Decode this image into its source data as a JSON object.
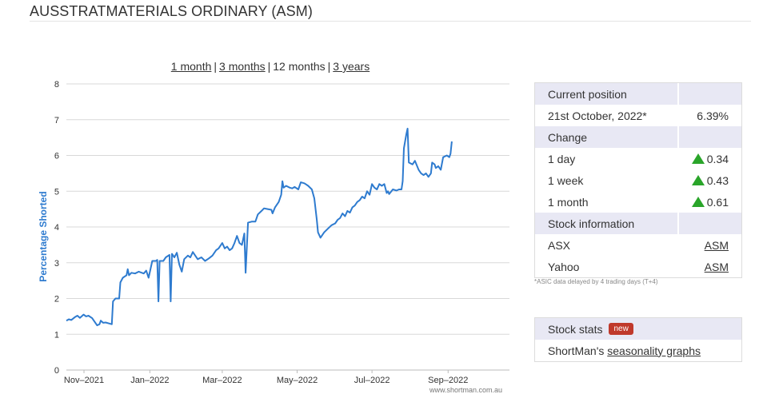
{
  "page": {
    "title": "AUSSTRATMATERIALS ORDINARY (ASM)"
  },
  "range_selector": {
    "options": [
      "1 month",
      "3 months",
      "12 months",
      "3 years"
    ],
    "selected": "12 months"
  },
  "chart_data": {
    "type": "line",
    "title": "",
    "xlabel": "",
    "ylabel": "Percentage Shorted",
    "ylim": [
      0,
      8
    ],
    "yticks": [
      0,
      1,
      2,
      3,
      4,
      5,
      6,
      7,
      8
    ],
    "xticks": [
      "Nov–2021",
      "Jan–2022",
      "Mar–2022",
      "May–2022",
      "Jul–2022",
      "Sep–2022"
    ],
    "xlim": [
      "2021-10-25",
      "2022-10-21"
    ],
    "grid": true,
    "credit": "www.shortman.com.au",
    "series": [
      {
        "color": "#2e7bcf",
        "points": [
          [
            "2021-10-25",
            1.38
          ],
          [
            "2021-10-27",
            1.42
          ],
          [
            "2021-10-29",
            1.4
          ],
          [
            "2021-11-01",
            1.48
          ],
          [
            "2021-11-03",
            1.52
          ],
          [
            "2021-11-05",
            1.46
          ],
          [
            "2021-11-08",
            1.55
          ],
          [
            "2021-11-10",
            1.5
          ],
          [
            "2021-11-12",
            1.52
          ],
          [
            "2021-11-15",
            1.45
          ],
          [
            "2021-11-17",
            1.35
          ],
          [
            "2021-11-19",
            1.25
          ],
          [
            "2021-11-21",
            1.28
          ],
          [
            "2021-11-22",
            1.38
          ],
          [
            "2021-11-24",
            1.32
          ],
          [
            "2021-11-26",
            1.33
          ],
          [
            "2021-11-29",
            1.3
          ],
          [
            "2021-12-01",
            1.28
          ],
          [
            "2021-12-02",
            1.92
          ],
          [
            "2021-12-04",
            2.0
          ],
          [
            "2021-12-07",
            2.0
          ],
          [
            "2021-12-08",
            2.45
          ],
          [
            "2021-12-10",
            2.58
          ],
          [
            "2021-12-13",
            2.65
          ],
          [
            "2021-12-14",
            2.82
          ],
          [
            "2021-12-15",
            2.65
          ],
          [
            "2021-12-17",
            2.72
          ],
          [
            "2021-12-20",
            2.7
          ],
          [
            "2021-12-23",
            2.75
          ],
          [
            "2021-12-27",
            2.7
          ],
          [
            "2021-12-29",
            2.78
          ],
          [
            "2021-12-31",
            2.58
          ],
          [
            "2022-01-03",
            3.05
          ],
          [
            "2022-01-06",
            3.05
          ],
          [
            "2022-01-07",
            3.08
          ],
          [
            "2022-01-08",
            1.92
          ],
          [
            "2022-01-09",
            3.05
          ],
          [
            "2022-01-12",
            3.05
          ],
          [
            "2022-01-14",
            3.15
          ],
          [
            "2022-01-17",
            3.22
          ],
          [
            "2022-01-18",
            1.92
          ],
          [
            "2022-01-19",
            3.25
          ],
          [
            "2022-01-21",
            3.15
          ],
          [
            "2022-01-23",
            3.28
          ],
          [
            "2022-01-25",
            2.95
          ],
          [
            "2022-01-27",
            2.75
          ],
          [
            "2022-01-29",
            3.1
          ],
          [
            "2022-02-01",
            3.2
          ],
          [
            "2022-02-03",
            3.15
          ],
          [
            "2022-02-05",
            3.3
          ],
          [
            "2022-02-07",
            3.2
          ],
          [
            "2022-02-09",
            3.1
          ],
          [
            "2022-02-12",
            3.15
          ],
          [
            "2022-02-15",
            3.05
          ],
          [
            "2022-02-18",
            3.12
          ],
          [
            "2022-02-21",
            3.2
          ],
          [
            "2022-02-24",
            3.35
          ],
          [
            "2022-02-26",
            3.4
          ],
          [
            "2022-03-01",
            3.55
          ],
          [
            "2022-03-03",
            3.4
          ],
          [
            "2022-03-05",
            3.45
          ],
          [
            "2022-03-07",
            3.35
          ],
          [
            "2022-03-09",
            3.4
          ],
          [
            "2022-03-11",
            3.55
          ],
          [
            "2022-03-13",
            3.75
          ],
          [
            "2022-03-15",
            3.55
          ],
          [
            "2022-03-17",
            3.5
          ],
          [
            "2022-03-19",
            3.82
          ],
          [
            "2022-03-20",
            2.72
          ],
          [
            "2022-03-22",
            4.12
          ],
          [
            "2022-03-25",
            4.15
          ],
          [
            "2022-03-28",
            4.15
          ],
          [
            "2022-03-30",
            4.35
          ],
          [
            "2022-04-02",
            4.45
          ],
          [
            "2022-04-04",
            4.52
          ],
          [
            "2022-04-07",
            4.5
          ],
          [
            "2022-04-10",
            4.48
          ],
          [
            "2022-04-11",
            4.38
          ],
          [
            "2022-04-13",
            4.55
          ],
          [
            "2022-04-16",
            4.7
          ],
          [
            "2022-04-18",
            4.9
          ],
          [
            "2022-04-19",
            5.28
          ],
          [
            "2022-04-20",
            5.1
          ],
          [
            "2022-04-22",
            5.15
          ],
          [
            "2022-04-25",
            5.1
          ],
          [
            "2022-04-27",
            5.08
          ],
          [
            "2022-04-29",
            5.12
          ],
          [
            "2022-05-02",
            5.05
          ],
          [
            "2022-05-04",
            5.25
          ],
          [
            "2022-05-07",
            5.22
          ],
          [
            "2022-05-10",
            5.15
          ],
          [
            "2022-05-13",
            5.05
          ],
          [
            "2022-05-15",
            4.8
          ],
          [
            "2022-05-17",
            4.2
          ],
          [
            "2022-05-18",
            3.85
          ],
          [
            "2022-05-20",
            3.7
          ],
          [
            "2022-05-23",
            3.85
          ],
          [
            "2022-05-26",
            3.95
          ],
          [
            "2022-05-29",
            4.05
          ],
          [
            "2022-06-01",
            4.1
          ],
          [
            "2022-06-03",
            4.2
          ],
          [
            "2022-06-05",
            4.25
          ],
          [
            "2022-06-07",
            4.38
          ],
          [
            "2022-06-09",
            4.3
          ],
          [
            "2022-06-11",
            4.45
          ],
          [
            "2022-06-13",
            4.4
          ],
          [
            "2022-06-15",
            4.55
          ],
          [
            "2022-06-17",
            4.6
          ],
          [
            "2022-06-19",
            4.7
          ],
          [
            "2022-06-21",
            4.75
          ],
          [
            "2022-06-23",
            4.85
          ],
          [
            "2022-06-25",
            4.8
          ],
          [
            "2022-06-27",
            5.0
          ],
          [
            "2022-06-29",
            4.9
          ],
          [
            "2022-07-01",
            5.2
          ],
          [
            "2022-07-03",
            5.1
          ],
          [
            "2022-07-05",
            5.05
          ],
          [
            "2022-07-07",
            5.2
          ],
          [
            "2022-07-09",
            5.15
          ],
          [
            "2022-07-11",
            5.2
          ],
          [
            "2022-07-13",
            4.95
          ],
          [
            "2022-07-14",
            5.0
          ],
          [
            "2022-07-15",
            4.92
          ],
          [
            "2022-07-18",
            5.05
          ],
          [
            "2022-07-21",
            5.02
          ],
          [
            "2022-07-23",
            5.05
          ],
          [
            "2022-07-25",
            5.05
          ],
          [
            "2022-07-26",
            5.28
          ],
          [
            "2022-07-27",
            6.2
          ],
          [
            "2022-07-29",
            6.6
          ],
          [
            "2022-07-30",
            6.75
          ],
          [
            "2022-07-31",
            5.8
          ],
          [
            "2022-08-03",
            5.75
          ],
          [
            "2022-08-05",
            5.85
          ],
          [
            "2022-08-08",
            5.6
          ],
          [
            "2022-08-10",
            5.5
          ],
          [
            "2022-08-12",
            5.45
          ],
          [
            "2022-08-14",
            5.5
          ],
          [
            "2022-08-16",
            5.4
          ],
          [
            "2022-08-18",
            5.5
          ],
          [
            "2022-08-19",
            5.8
          ],
          [
            "2022-08-21",
            5.75
          ],
          [
            "2022-08-22",
            5.65
          ],
          [
            "2022-08-24",
            5.7
          ],
          [
            "2022-08-26",
            5.6
          ],
          [
            "2022-08-28",
            5.95
          ],
          [
            "2022-08-31",
            6.0
          ],
          [
            "2022-09-02",
            5.95
          ],
          [
            "2022-09-03",
            6.05
          ],
          [
            "2022-09-04",
            6.39
          ]
        ]
      }
    ]
  },
  "current_position": {
    "header": "Current position",
    "date": "21st October, 2022*",
    "value": "6.39%"
  },
  "change": {
    "header": "Change",
    "rows": [
      {
        "label": "1 day",
        "value": "0.34"
      },
      {
        "label": "1 week",
        "value": "0.43"
      },
      {
        "label": "1 month",
        "value": "0.61"
      }
    ]
  },
  "stock_information": {
    "header": "Stock information",
    "rows": [
      {
        "label": "ASX",
        "link": "ASM"
      },
      {
        "label": "Yahoo",
        "link": "ASM"
      }
    ]
  },
  "footnote": "*ASIC data delayed by 4 trading days (T+4)",
  "stock_stats": {
    "header": "Stock stats",
    "badge": "new",
    "prefix": "ShortMan's ",
    "link": "seasonality graphs"
  },
  "colors": {
    "line": "#2e7bcf",
    "axis_label": "#2e7bcf",
    "panel_header": "#e8e8f4",
    "badge": "#c0392b",
    "up_arrow": "#2aa52a"
  }
}
